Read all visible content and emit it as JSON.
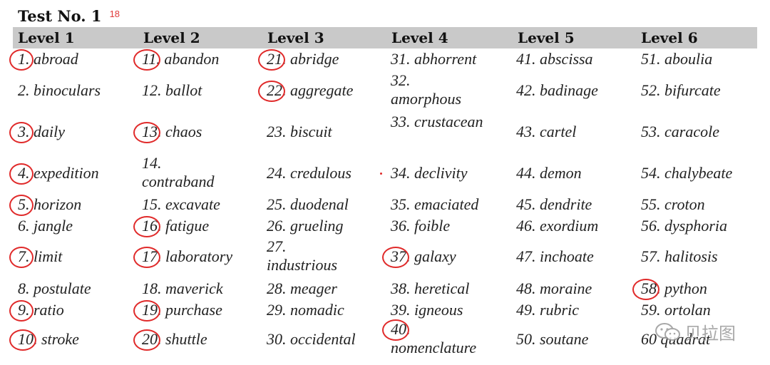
{
  "header": {
    "title": "Test No. 1",
    "score": "18"
  },
  "levels": [
    "Level 1",
    "Level 2",
    "Level 3",
    "Level 4",
    "Level 5",
    "Level 6"
  ],
  "watermark": "贝拉图",
  "rows": [
    [
      "1. abroad",
      "11. abandon",
      "21. abridge",
      "31. abhorrent",
      "41. abscissa",
      "51. aboulia"
    ],
    [
      "2. binoculars",
      "12. ballot",
      "22. aggregate",
      "32.|amorphous",
      "42. badinage",
      "52. bifurcate"
    ],
    [
      "3. daily",
      "13. chaos",
      "23. biscuit",
      "33. crustacean",
      "43. cartel",
      "53. caracole"
    ],
    [
      "4. expedition",
      "14.|contraband",
      "24. credulous",
      "34. declivity",
      "44. demon",
      "54. chalybeate"
    ],
    [
      "5. horizon",
      "15. excavate",
      "25. duodenal",
      "35. emaciated",
      "45. dendrite",
      "55. croton"
    ],
    [
      "6. jangle",
      "16. fatigue",
      "26. grueling",
      "36. foible",
      "46. exordium",
      "56. dysphoria"
    ],
    [
      "7. limit",
      "17. laboratory",
      "27.|industrious",
      "37. galaxy",
      "47. inchoate",
      "57. halitosis"
    ],
    [
      "8. postulate",
      "18. maverick",
      "28. meager",
      "38. heretical",
      "48. moraine",
      "58. python"
    ],
    [
      "9. ratio",
      "19. purchase",
      "29. nomadic",
      "39. igneous",
      "49. rubric",
      "59. ortolan"
    ],
    [
      "10. stroke",
      "20. shuttle",
      "30. occidental",
      "40.|nomenclature",
      "50. soutane",
      "60 quadrat"
    ]
  ],
  "circled": [
    "1",
    "3",
    "4",
    "5",
    "7",
    "9",
    "10",
    "11",
    "13",
    "16",
    "17",
    "19",
    "20",
    "21",
    "22",
    "37",
    "40",
    "58"
  ]
}
